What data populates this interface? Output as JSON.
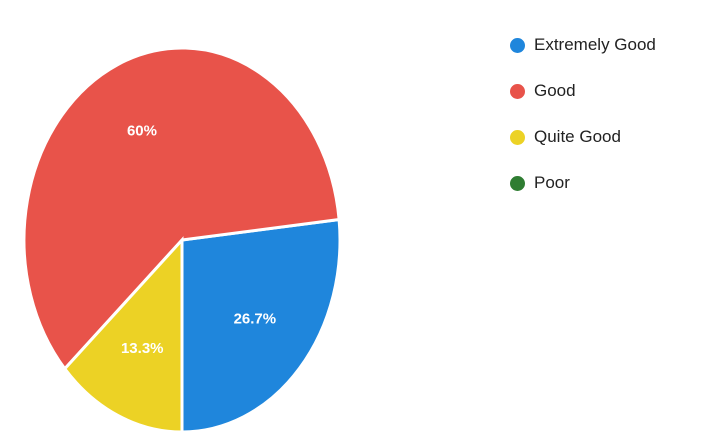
{
  "chart_data": {
    "type": "pie",
    "series": [
      {
        "name": "Extremely Good",
        "value": 26.7,
        "label": "26.7%",
        "color": "#1f86dc"
      },
      {
        "name": "Good",
        "value": 60,
        "label": "60%",
        "color": "#e8534a"
      },
      {
        "name": "Quite Good",
        "value": 13.3,
        "label": "13.3%",
        "color": "#ecd225"
      },
      {
        "name": "Poor",
        "value": 0,
        "label": "",
        "color": "#2f7d32"
      }
    ],
    "legend_position": "top-right"
  }
}
